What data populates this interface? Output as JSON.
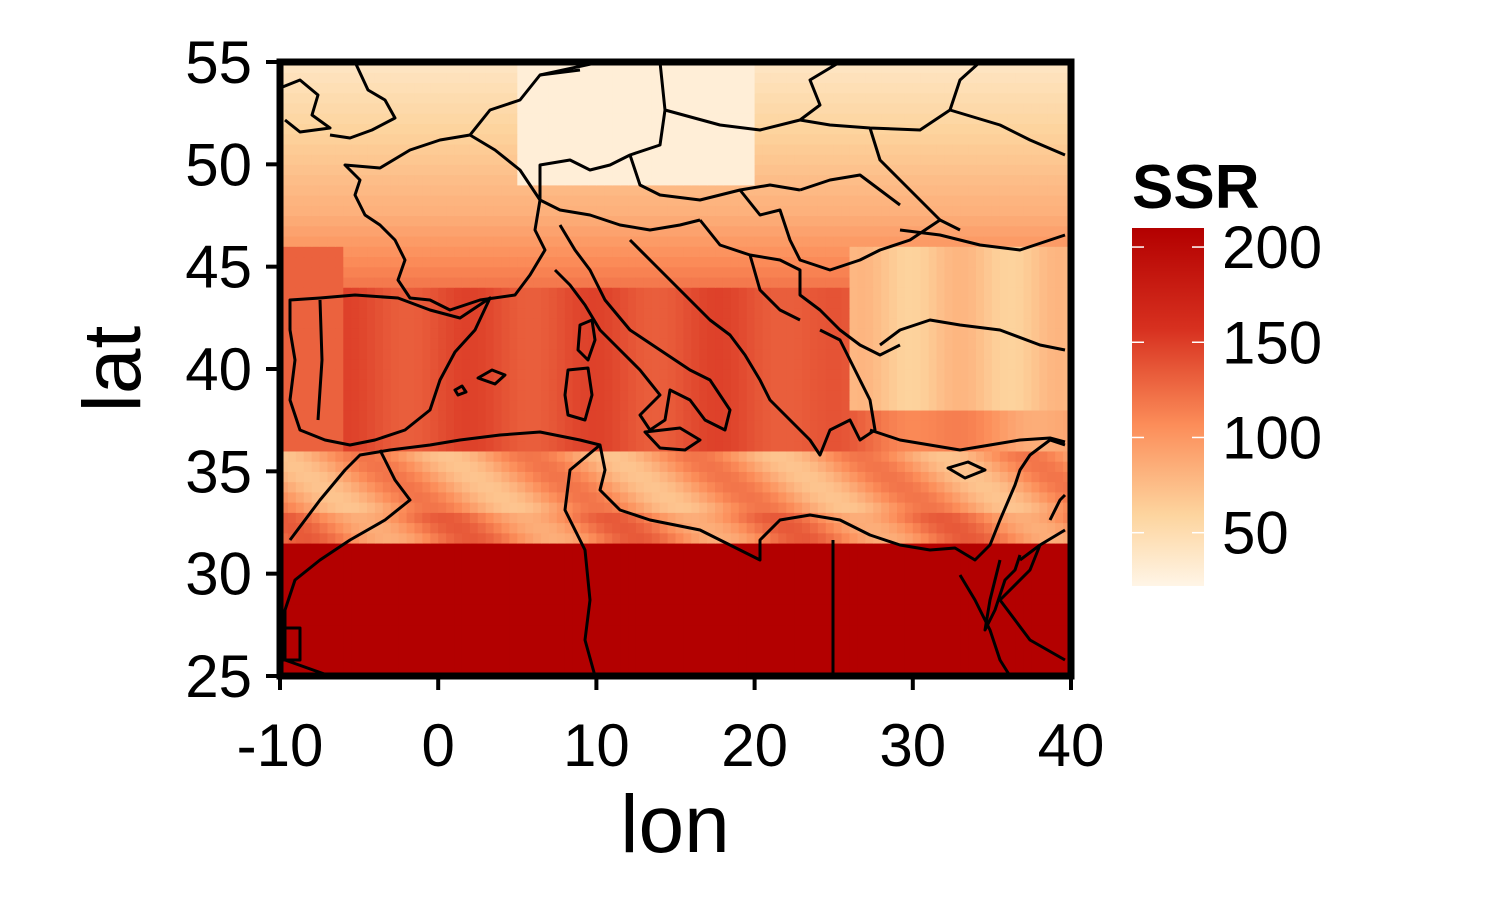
{
  "chart_data": {
    "type": "heatmap",
    "title": "",
    "xlabel": "lon",
    "ylabel": "lat",
    "xlim": [
      -10,
      40
    ],
    "ylim": [
      25,
      55
    ],
    "x_ticks": [
      "-10",
      "0",
      "10",
      "20",
      "30",
      "40"
    ],
    "y_ticks": [
      "25",
      "30",
      "35",
      "40",
      "45",
      "50",
      "55"
    ],
    "x_tick_values": [
      -10,
      0,
      10,
      20,
      30,
      40
    ],
    "y_tick_values": [
      25,
      30,
      35,
      40,
      45,
      50,
      55
    ],
    "legend": {
      "title": "SSR",
      "labels": [
        "200",
        "150",
        "100",
        "50"
      ],
      "values": [
        200,
        150,
        100,
        50
      ],
      "range": [
        22,
        210
      ],
      "colors": [
        "#fff5e6",
        "#fdd49e",
        "#fc8d59",
        "#d7301f",
        "#b30000"
      ]
    },
    "field_description_values": {
      "north_lat_above_48": 45,
      "central_europe": 110,
      "mediterranean_sea": 150,
      "north_africa_coast": 120,
      "sahara_below_31": 210
    }
  }
}
